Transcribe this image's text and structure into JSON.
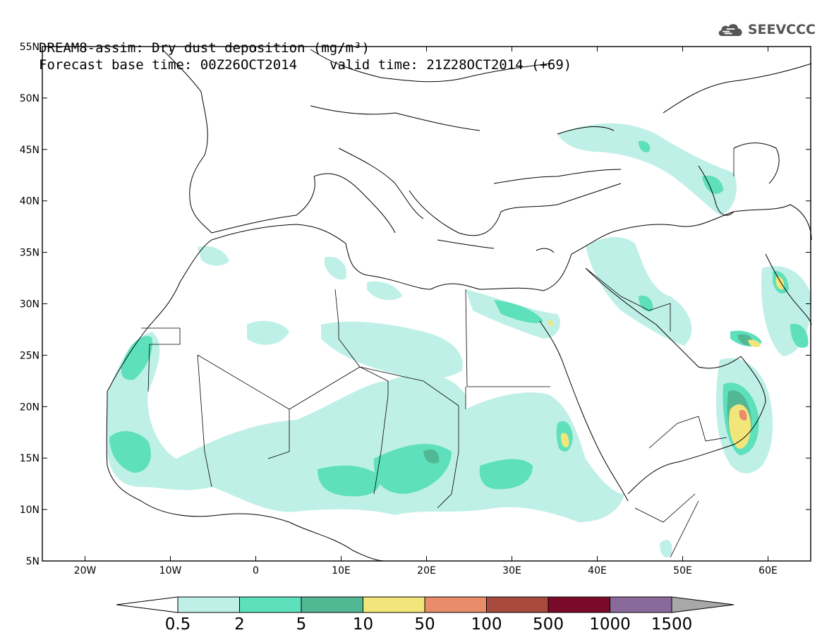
{
  "title": {
    "line1": "DREAM8-assim: Dry dust deposition (mg/m³)",
    "base_time": "Forecast base time: 00Z26OCT2014",
    "valid_time": "valid time: 21Z28OCT2014 (+69)"
  },
  "logo": {
    "text": "SEEVCCC",
    "icon": "cloud-logo-icon"
  },
  "map": {
    "lon_range": [
      -25,
      65
    ],
    "lat_range": [
      5,
      55
    ],
    "x_ticks": [
      "20W",
      "10W",
      "0",
      "10E",
      "20E",
      "30E",
      "40E",
      "50E",
      "60E"
    ],
    "y_ticks": [
      "55N",
      "50N",
      "45N",
      "40N",
      "35N",
      "30N",
      "25N",
      "20N",
      "15N",
      "10N",
      "5N"
    ]
  },
  "colorbar": {
    "labels": [
      "0.5",
      "2",
      "5",
      "10",
      "50",
      "100",
      "500",
      "1000",
      "1500"
    ],
    "colors": [
      "#bff0e8",
      "#5ee0bc",
      "#52b894",
      "#f2e67a",
      "#e88c6a",
      "#a84a3e",
      "#7a0a2a",
      "#8a6a9a",
      "#a8a8a8"
    ]
  }
}
